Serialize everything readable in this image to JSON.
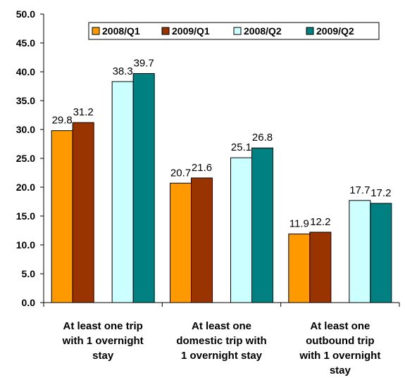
{
  "chart_data": {
    "type": "bar",
    "categories": [
      [
        "At least one trip",
        "with 1 overnight",
        "stay"
      ],
      [
        "At least one",
        "domestic trip with",
        "1 overnight stay"
      ],
      [
        "At least one",
        "outbound trip",
        "with 1 overnight",
        "stay"
      ]
    ],
    "series": [
      {
        "name": "2008/Q1",
        "color": "#FF9900",
        "values": [
          29.8,
          20.7,
          11.9
        ]
      },
      {
        "name": "2009/Q1",
        "color": "#993300",
        "values": [
          31.2,
          21.6,
          12.2
        ]
      },
      {
        "name": "2008/Q2",
        "color": "#CCFFFF",
        "values": [
          38.3,
          25.1,
          17.7
        ]
      },
      {
        "name": "2009/Q2",
        "color": "#008080",
        "values": [
          39.7,
          26.8,
          17.2
        ]
      }
    ],
    "yticks": [
      "0.0",
      "5.0",
      "10.0",
      "15.0",
      "20.0",
      "25.0",
      "30.0",
      "35.0",
      "40.0",
      "45.0",
      "50.0"
    ],
    "ylim": [
      0,
      50
    ],
    "legend_position": "top",
    "grid": false
  }
}
